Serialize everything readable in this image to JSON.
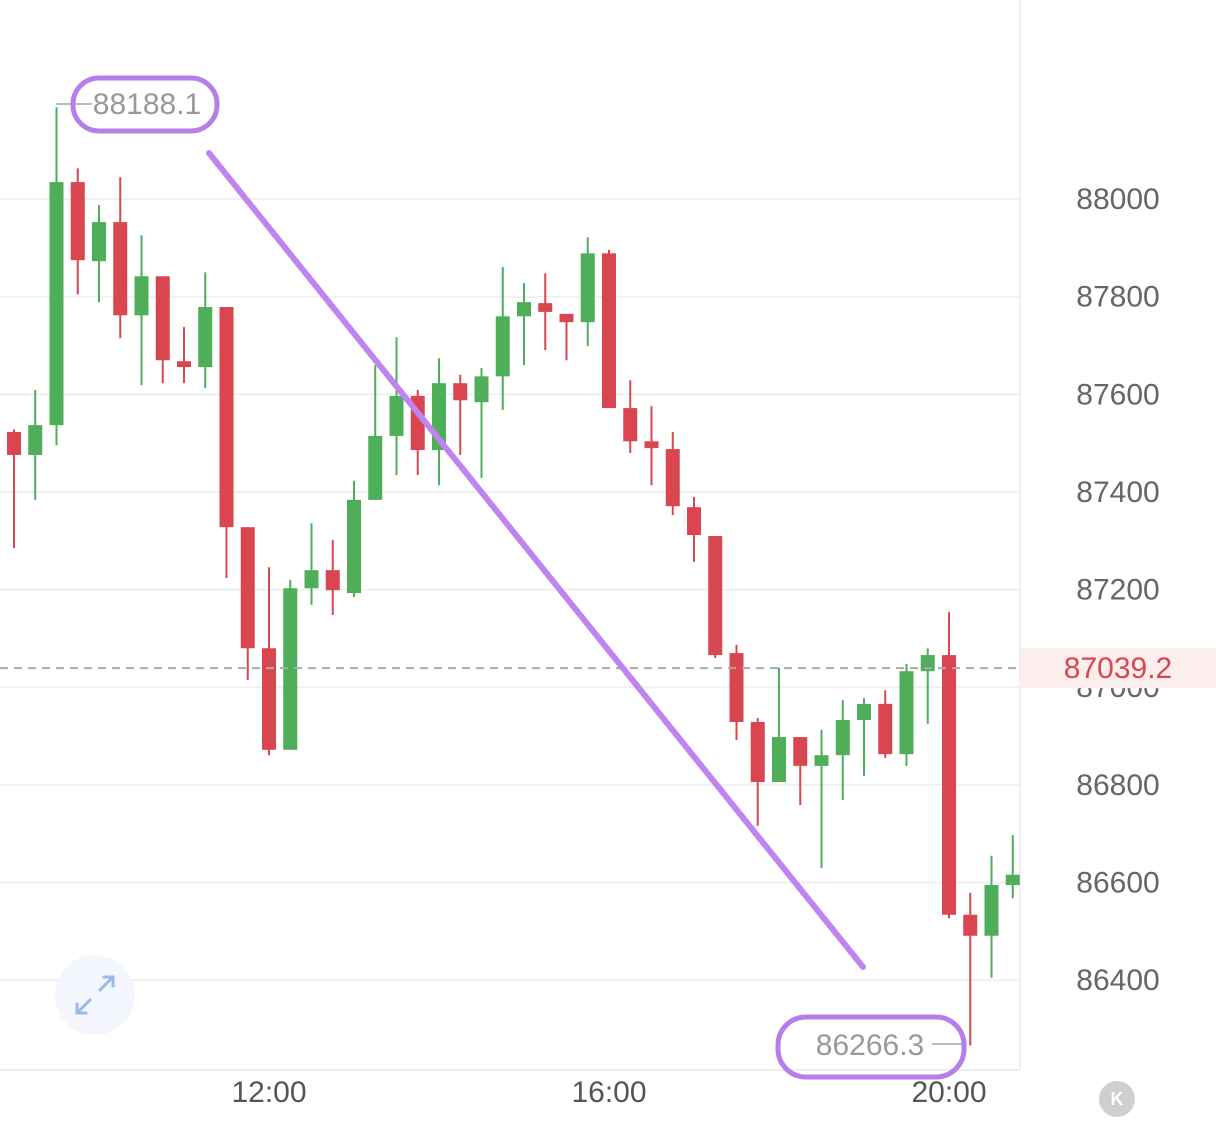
{
  "chart_data": {
    "type": "candlestick",
    "categories": [
      null,
      null,
      null,
      null,
      null,
      null,
      null,
      null,
      null,
      null,
      null,
      null,
      "12:00",
      null,
      null,
      null,
      null,
      null,
      null,
      null,
      null,
      null,
      null,
      null,
      null,
      null,
      null,
      null,
      "16:00",
      null,
      null,
      null,
      null,
      null,
      null,
      null,
      null,
      null,
      null,
      null,
      null,
      null,
      null,
      null,
      "20:00",
      null,
      null,
      null
    ],
    "open": [
      87523,
      87476,
      87537,
      88035,
      87873,
      87953,
      87762,
      87842,
      87668,
      87656,
      87779,
      87328,
      87080,
      86872,
      87203,
      87240,
      87193,
      87384,
      87515,
      87597,
      87486,
      87623,
      87584,
      87637,
      87760,
      87787,
      87765,
      87748,
      87889,
      87572,
      87504,
      87488,
      87369,
      87310,
      87070,
      86929,
      86806,
      86898,
      86839,
      86861,
      86933,
      86966,
      86863,
      87033,
      87066,
      86534,
      86491,
      86595
    ],
    "high": [
      87528,
      87609,
      88188.1,
      88063,
      87988,
      88045,
      87926,
      87842,
      87738,
      87850,
      87779,
      87328,
      87246,
      87220,
      87336,
      87302,
      87423,
      87660,
      87717,
      87609,
      87674,
      87640,
      87654,
      87861,
      87828,
      87848,
      87765,
      87922,
      87896,
      87629,
      87576,
      87523,
      87390,
      87310,
      87087,
      86937,
      87040,
      86898,
      86913,
      86974,
      86978,
      86994,
      87048,
      87080,
      87154,
      86579,
      86655,
      86697
    ],
    "low": [
      87285,
      87384,
      87496,
      87805,
      87789,
      87715,
      87619,
      87623,
      87623,
      87613,
      87224,
      87015,
      86861,
      86872,
      87169,
      87148,
      87185,
      87384,
      87435,
      87435,
      87414,
      87476,
      87429,
      87568,
      87660,
      87691,
      87670,
      87699,
      87572,
      87480,
      87414,
      87353,
      87257,
      87060,
      86892,
      86716,
      86806,
      86759,
      86630,
      86769,
      86818,
      86855,
      86839,
      86925,
      86527,
      86266.3,
      86405,
      86568
    ],
    "close": [
      87476,
      87537,
      88035,
      87875,
      87953,
      87762,
      87842,
      87670,
      87656,
      87779,
      87328,
      87080,
      86872,
      87203,
      87240,
      87199,
      87384,
      87515,
      87597,
      87486,
      87623,
      87588,
      87637,
      87760,
      87789,
      87769,
      87748,
      87889,
      87572,
      87504,
      87490,
      87371,
      87312,
      87066,
      86929,
      86806,
      86898,
      86839,
      86861,
      86933,
      86966,
      86863,
      87033,
      87066,
      86534,
      86491,
      86595,
      86616
    ],
    "up_color": "#4fae5a",
    "down_color": "#d94650",
    "ylim": [
      86216,
      88408
    ],
    "yticks": [
      86400,
      86600,
      86800,
      87000,
      87200,
      87400,
      87600,
      87800,
      88000
    ],
    "grid": true,
    "current_price": 87039.2,
    "current_price_color": "#d94650"
  },
  "badge": "K"
}
